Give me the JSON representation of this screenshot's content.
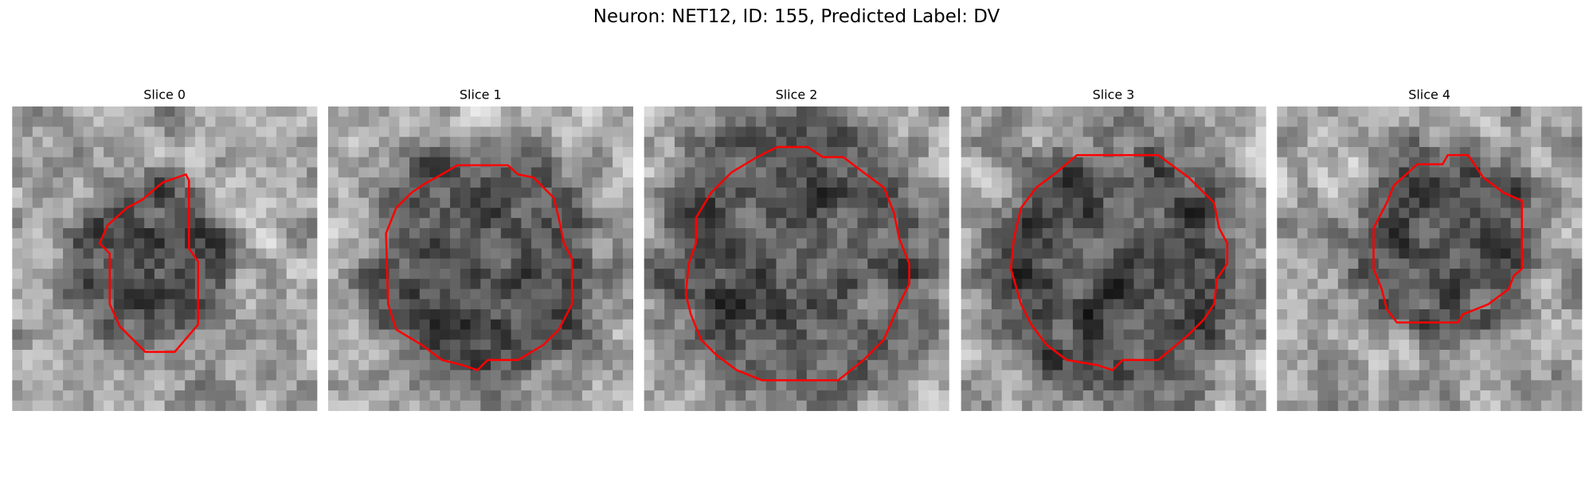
{
  "title": "Neuron: NET12, ID: 155, Predicted Label: DV",
  "panels": [
    {
      "title": "Slice 0"
    },
    {
      "title": "Slice 1"
    },
    {
      "title": "Slice 2"
    },
    {
      "title": "Slice 3"
    },
    {
      "title": "Slice 4"
    }
  ]
}
